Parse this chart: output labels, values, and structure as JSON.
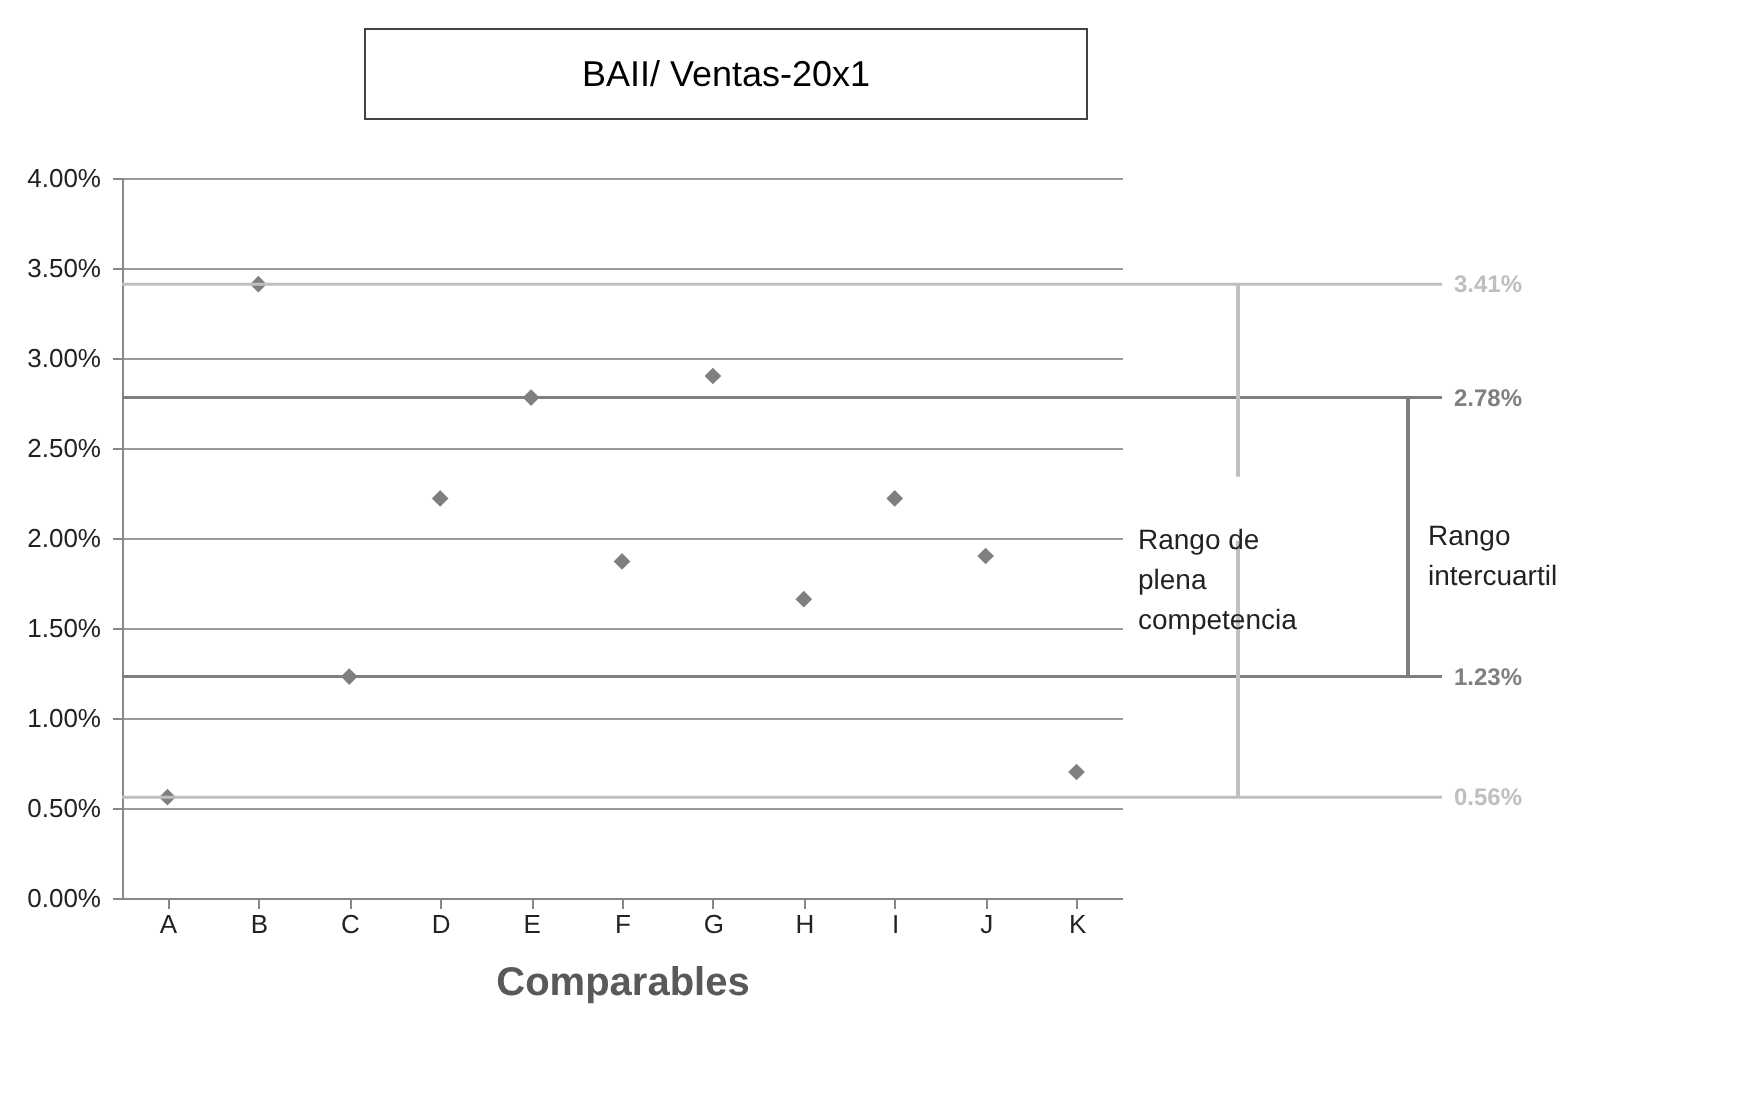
{
  "chart_data": {
    "type": "scatter",
    "title": "BAII/ Ventas-20x1",
    "xlabel": "Comparables",
    "categories": [
      "A",
      "B",
      "C",
      "D",
      "E",
      "F",
      "G",
      "H",
      "I",
      "J",
      "K"
    ],
    "series": [
      {
        "color": "#7f7f7f",
        "values": [
          0.56,
          3.41,
          1.23,
          2.22,
          2.78,
          1.87,
          2.9,
          1.66,
          2.22,
          1.9,
          0.7
        ]
      }
    ],
    "ylim": [
      0,
      4
    ],
    "yticks": [
      {
        "value": 0,
        "label": "0.00%"
      },
      {
        "value": 0.5,
        "label": "0.50%"
      },
      {
        "value": 1,
        "label": "1.00%"
      },
      {
        "value": 1.5,
        "label": "1.50%"
      },
      {
        "value": 2,
        "label": "2.00%"
      },
      {
        "value": 2.5,
        "label": "2.50%"
      },
      {
        "value": 3,
        "label": "3.00%"
      },
      {
        "value": 3.5,
        "label": "3.50%"
      },
      {
        "value": 4,
        "label": "4.00%"
      }
    ],
    "grid": "y",
    "marker": "diamond",
    "ref_lines": [
      {
        "axis": "y",
        "value": 3.41,
        "label": "3.41%",
        "color": "#bfbfbf"
      },
      {
        "axis": "y",
        "value": 2.78,
        "label": "2.78%",
        "color": "#7f7f7f"
      },
      {
        "axis": "y",
        "value": 1.23,
        "label": "1.23%",
        "color": "#7f7f7f"
      },
      {
        "axis": "y",
        "value": 0.56,
        "label": "0.56%",
        "color": "#bfbfbf"
      }
    ],
    "annotations": [
      "Rango de plena competencia",
      "Rango intercuartil"
    ]
  }
}
